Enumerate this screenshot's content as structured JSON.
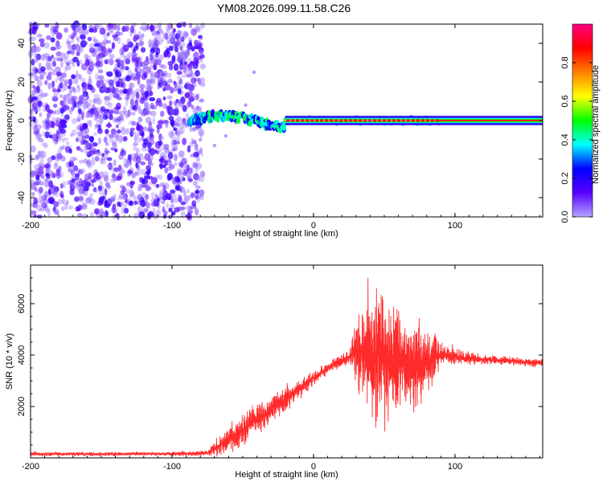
{
  "figure": {
    "title": "YM08.2026.099.11.58.C26"
  },
  "chart_data": [
    {
      "type": "heatmap",
      "name": "spectrogram",
      "xlabel": "Height of straight line (km)",
      "ylabel": "Frequency (Hz)",
      "xlim": [
        -200,
        162
      ],
      "ylim": [
        -50,
        50
      ],
      "xticks": [
        -200,
        -100,
        0,
        100
      ],
      "yticks": [
        -40,
        -20,
        0,
        20,
        40
      ],
      "colorbar": {
        "label": "Normalized spectral amplitude",
        "range": [
          0,
          1
        ],
        "ticks": [
          0.0,
          0.2,
          0.4,
          0.6,
          0.8
        ],
        "tick_labels": [
          "0.0",
          "0.2",
          "0.4",
          "0.6",
          "0.8"
        ],
        "colormap": [
          "#b3a3ff",
          "#5a00ff",
          "#0000ff",
          "#00ffff",
          "#00ff00",
          "#ffff00",
          "#ff8000",
          "#ff0000",
          "#ff0080"
        ]
      },
      "regions": [
        {
          "description": "noise",
          "x_range": [
            -200,
            -78
          ],
          "f_range": [
            -50,
            50
          ],
          "amplitude_range": [
            0.02,
            0.2
          ]
        },
        {
          "description": "signal-onset",
          "x_range": [
            -88,
            -20
          ],
          "f_center": 1.5,
          "f_halfwidth": 4,
          "amplitude_range": [
            0.2,
            0.5
          ]
        },
        {
          "description": "carrier",
          "x_range": [
            -20,
            162
          ],
          "f_center": 0,
          "f_halfwidth": 2,
          "amplitude_range": [
            0.7,
            1.0
          ]
        }
      ],
      "tail": {
        "x": [
          -90,
          -80,
          -70,
          -62,
          -55,
          -48,
          -42
        ],
        "f": [
          -2,
          -10,
          -13,
          -8,
          -1,
          8,
          25
        ]
      }
    },
    {
      "type": "line",
      "name": "snr",
      "ylabel": "SNR (10 * v/v)",
      "xlabel": "Height of straight line (km)",
      "xlim": [
        -200,
        162
      ],
      "ylim": [
        0,
        7500
      ],
      "xticks": [
        -200,
        -100,
        0,
        100
      ],
      "yticks": [
        2000,
        4000,
        6000
      ],
      "color": "#ff2a2a",
      "series": [
        {
          "name": "SNR envelope",
          "x": [
            -200,
            -150,
            -100,
            -75,
            -65,
            -50,
            -35,
            -20,
            -5,
            10,
            25,
            35,
            42,
            50,
            60,
            75,
            90,
            105,
            130,
            162
          ],
          "mean": [
            150,
            150,
            160,
            180,
            550,
            1100,
            1700,
            2300,
            2900,
            3500,
            3950,
            4200,
            4050,
            3850,
            3750,
            3600,
            4050,
            3900,
            3800,
            3700
          ],
          "spread": [
            100,
            100,
            100,
            120,
            600,
            800,
            700,
            600,
            400,
            300,
            350,
            2500,
            3600,
            3200,
            2700,
            2000,
            700,
            300,
            200,
            200
          ]
        }
      ]
    }
  ]
}
